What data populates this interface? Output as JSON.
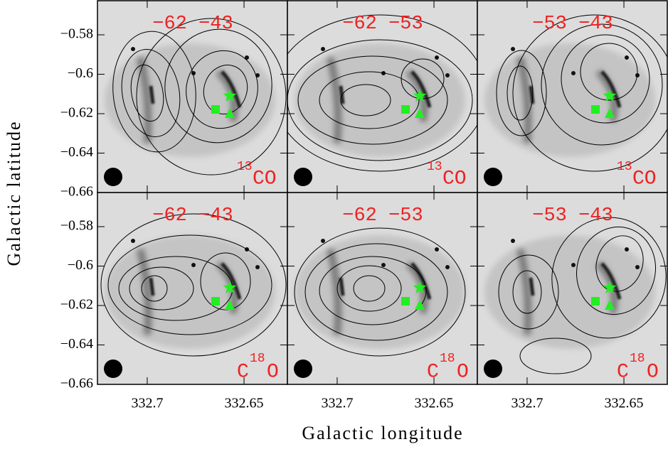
{
  "figure": {
    "xlabel": "Galactic longitude",
    "ylabel": "Galactic latitude"
  },
  "chart_data": [
    {
      "type": "map",
      "label": "−62 −43",
      "tracer": {
        "sup": "13",
        "text": "CO"
      },
      "xlim": [
        332.7257,
        332.6276
      ],
      "ylim": [
        -0.5627,
        -0.66
      ],
      "xticks": [
        332.7,
        332.65
      ],
      "yticks": [
        {
          "value": -0.58,
          "label": "−0.58"
        },
        {
          "value": -0.6,
          "label": "−0.6"
        },
        {
          "value": -0.62,
          "label": "−0.62"
        },
        {
          "value": -0.64,
          "label": "−0.64"
        },
        {
          "value": -0.66,
          "label": "−0.66"
        }
      ]
    },
    {
      "type": "map",
      "label": "−62 −53",
      "tracer": {
        "sup": "13",
        "text": "CO"
      },
      "xlim": [
        332.7257,
        332.6276
      ],
      "ylim": [
        -0.5627,
        -0.66
      ],
      "xticks": [
        332.7,
        332.65
      ],
      "yticks": [
        {
          "value": -0.58,
          "label": "−0.58"
        },
        {
          "value": -0.6,
          "label": "−0.6"
        },
        {
          "value": -0.62,
          "label": "−0.62"
        },
        {
          "value": -0.64,
          "label": "−0.64"
        },
        {
          "value": -0.66,
          "label": "−0.66"
        }
      ]
    },
    {
      "type": "map",
      "label": "−53 −43",
      "tracer": {
        "sup": "13",
        "text": "CO"
      },
      "xlim": [
        332.7257,
        332.6276
      ],
      "ylim": [
        -0.5627,
        -0.66
      ],
      "xticks": [
        332.7,
        332.65
      ],
      "yticks": [
        {
          "value": -0.58,
          "label": "−0.58"
        },
        {
          "value": -0.6,
          "label": "−0.6"
        },
        {
          "value": -0.62,
          "label": "−0.62"
        },
        {
          "value": -0.64,
          "label": "−0.64"
        },
        {
          "value": -0.66,
          "label": "−0.66"
        }
      ]
    },
    {
      "type": "map",
      "label": "−62 −43",
      "tracer": {
        "text": "C",
        "sup": "18",
        "text2": "O"
      },
      "xlim": [
        332.7257,
        332.6276
      ],
      "ylim": [
        -0.5627,
        -0.66
      ],
      "xticks": [
        332.7,
        332.65
      ],
      "yticks": [
        {
          "value": -0.58,
          "label": "−0.58"
        },
        {
          "value": -0.6,
          "label": "−0.6"
        },
        {
          "value": -0.62,
          "label": "−0.62"
        },
        {
          "value": -0.64,
          "label": "−0.64"
        },
        {
          "value": -0.66,
          "label": "−0.66"
        }
      ]
    },
    {
      "type": "map",
      "label": "−62 −53",
      "tracer": {
        "text": "C",
        "sup": "18",
        "text2": "O"
      },
      "xlim": [
        332.7257,
        332.6276
      ],
      "ylim": [
        -0.5627,
        -0.66
      ],
      "xticks": [
        332.7,
        332.65
      ],
      "yticks": [
        {
          "value": -0.58,
          "label": "−0.58"
        },
        {
          "value": -0.6,
          "label": "−0.6"
        },
        {
          "value": -0.62,
          "label": "−0.62"
        },
        {
          "value": -0.64,
          "label": "−0.64"
        },
        {
          "value": -0.66,
          "label": "−0.66"
        }
      ]
    },
    {
      "type": "map",
      "label": "−53 −43",
      "tracer": {
        "text": "C",
        "sup": "18",
        "text2": "O"
      },
      "xlim": [
        332.7257,
        332.6276
      ],
      "ylim": [
        -0.5627,
        -0.66
      ],
      "xticks": [
        332.7,
        332.65
      ],
      "yticks": [
        {
          "value": -0.58,
          "label": "−0.58"
        },
        {
          "value": -0.6,
          "label": "−0.6"
        },
        {
          "value": -0.62,
          "label": "−0.62"
        },
        {
          "value": -0.64,
          "label": "−0.64"
        },
        {
          "value": -0.66,
          "label": "−0.66"
        }
      ]
    }
  ]
}
